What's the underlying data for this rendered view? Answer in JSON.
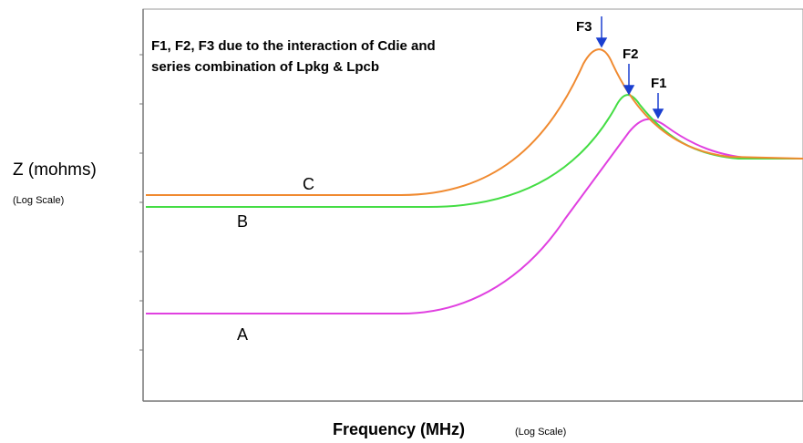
{
  "annotation": {
    "line1": "F1, F2, F3 due to the interaction of Cdie and",
    "line2": "series combination of Lpkg &  Lpcb"
  },
  "peaks": {
    "f1": "F1",
    "f2": "F2",
    "f3": "F3"
  },
  "curves": {
    "a": "A",
    "b": "B",
    "c": "C"
  },
  "y_axis": {
    "label": "Z (mohms)",
    "scale": "(Log Scale)"
  },
  "x_axis": {
    "label": "Frequency (MHz)",
    "scale": "(Log Scale)"
  }
}
